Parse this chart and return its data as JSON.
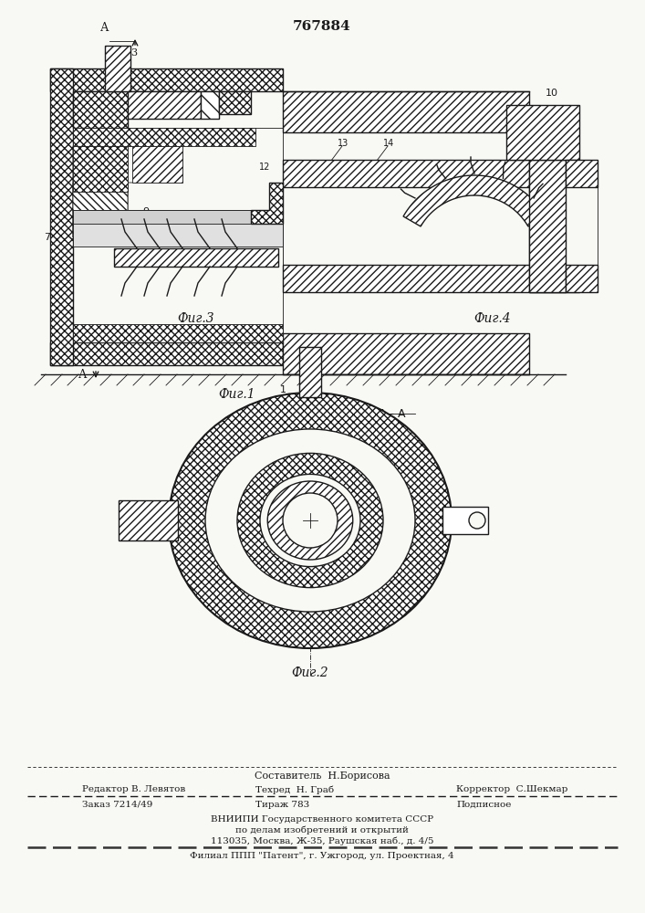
{
  "patent_number": "767884",
  "bg_color": "#f8f8f5",
  "line_color": "#1a1a1a",
  "fig1_label": "Фиг.1",
  "fig2_label": "Фиг.2",
  "fig3_label": "Фиг.3",
  "fig4_label": "Фиг.4",
  "footer_line1": "Составитель  Н.Борисова",
  "footer_line2_left": "Редактор В. Левятов",
  "footer_line2_mid": "Техред  Н. Граб",
  "footer_line2_right": "Корректор  С.Шекмар",
  "footer_line3_left": "Заказ 7214/49",
  "footer_line3_mid": "Тираж 783",
  "footer_line3_right": "Подписное",
  "footer_line4": "ВНИИПИ Государственного комитета СССР",
  "footer_line5": "по делам изобретений и открытий",
  "footer_line6": "113035, Москва, Ж-35, Раушская наб., д. 4/5",
  "footer_line7": "Филиал ППП \"Патент\", г. Ужгород, ул. Проектная, 4"
}
